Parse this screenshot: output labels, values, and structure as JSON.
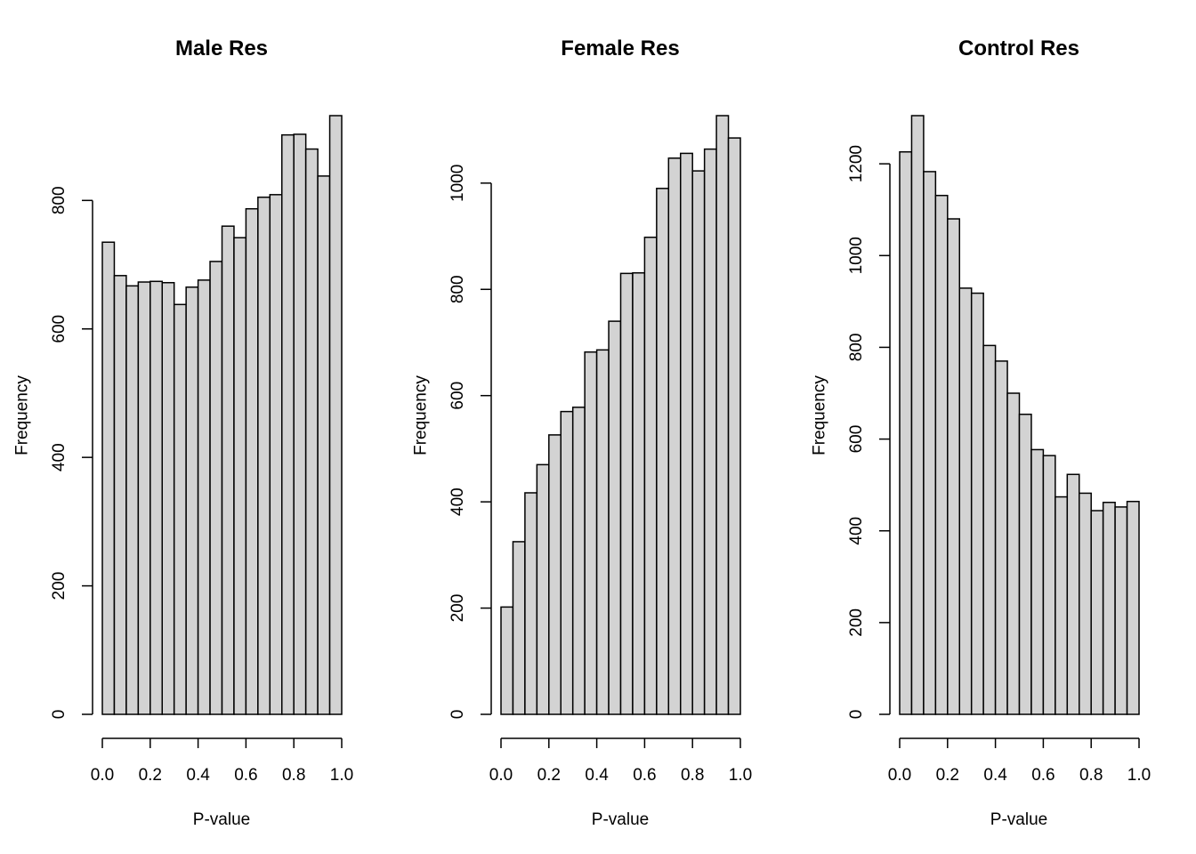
{
  "bar_fill": "#d3d3d3",
  "bar_stroke": "#000000",
  "chart_data": [
    {
      "type": "bar",
      "title": "Male Res",
      "xlabel": "P-value",
      "ylabel": "Frequency",
      "bin_edges": [
        0.0,
        0.05,
        0.1,
        0.15,
        0.2,
        0.25,
        0.3,
        0.35,
        0.4,
        0.45,
        0.5,
        0.55,
        0.6,
        0.65,
        0.7,
        0.75,
        0.8,
        0.85,
        0.9,
        0.95,
        1.0
      ],
      "values": [
        735,
        683,
        667,
        673,
        674,
        672,
        638,
        665,
        676,
        705,
        760,
        742,
        787,
        805,
        809,
        902,
        903,
        880,
        838,
        932
      ],
      "ylim": [
        0,
        932
      ],
      "xlim": [
        0,
        1
      ],
      "xticks": [
        "0.0",
        "0.2",
        "0.4",
        "0.6",
        "0.8",
        "1.0"
      ],
      "yticks": [
        "0",
        "200",
        "400",
        "600",
        "800"
      ],
      "xtick_values": [
        0,
        0.2,
        0.4,
        0.6,
        0.8,
        1.0
      ],
      "ytick_values": [
        0,
        200,
        400,
        600,
        800
      ]
    },
    {
      "type": "bar",
      "title": "Female Res",
      "xlabel": "P-value",
      "ylabel": "Frequency",
      "bin_edges": [
        0.0,
        0.05,
        0.1,
        0.15,
        0.2,
        0.25,
        0.3,
        0.35,
        0.4,
        0.45,
        0.5,
        0.55,
        0.6,
        0.65,
        0.7,
        0.75,
        0.8,
        0.85,
        0.9,
        0.95,
        1.0
      ],
      "values": [
        202,
        325,
        417,
        470,
        526,
        570,
        578,
        682,
        686,
        740,
        830,
        831,
        898,
        990,
        1047,
        1056,
        1023,
        1064,
        1127,
        1085
      ],
      "ylim": [
        0,
        1127
      ],
      "xlim": [
        0,
        1
      ],
      "xticks": [
        "0.0",
        "0.2",
        "0.4",
        "0.6",
        "0.8",
        "1.0"
      ],
      "yticks": [
        "0",
        "200",
        "400",
        "600",
        "800",
        "1000"
      ],
      "xtick_values": [
        0,
        0.2,
        0.4,
        0.6,
        0.8,
        1.0
      ],
      "ytick_values": [
        0,
        200,
        400,
        600,
        800,
        1000
      ]
    },
    {
      "type": "bar",
      "title": "Control Res",
      "xlabel": "P-value",
      "ylabel": "Frequency",
      "bin_edges": [
        0.0,
        0.05,
        0.1,
        0.15,
        0.2,
        0.25,
        0.3,
        0.35,
        0.4,
        0.45,
        0.5,
        0.55,
        0.6,
        0.65,
        0.7,
        0.75,
        0.8,
        0.85,
        0.9,
        0.95,
        1.0
      ],
      "values": [
        1226,
        1305,
        1183,
        1131,
        1080,
        929,
        918,
        804,
        770,
        700,
        654,
        577,
        564,
        474,
        523,
        482,
        444,
        462,
        452,
        464
      ],
      "ylim": [
        0,
        1305
      ],
      "xlim": [
        0,
        1
      ],
      "xticks": [
        "0.0",
        "0.2",
        "0.4",
        "0.6",
        "0.8",
        "1.0"
      ],
      "yticks": [
        "0",
        "200",
        "400",
        "600",
        "800",
        "1000",
        "1200"
      ],
      "xtick_values": [
        0,
        0.2,
        0.4,
        0.6,
        0.8,
        1.0
      ],
      "ytick_values": [
        0,
        200,
        400,
        600,
        800,
        1000,
        1200
      ]
    }
  ]
}
